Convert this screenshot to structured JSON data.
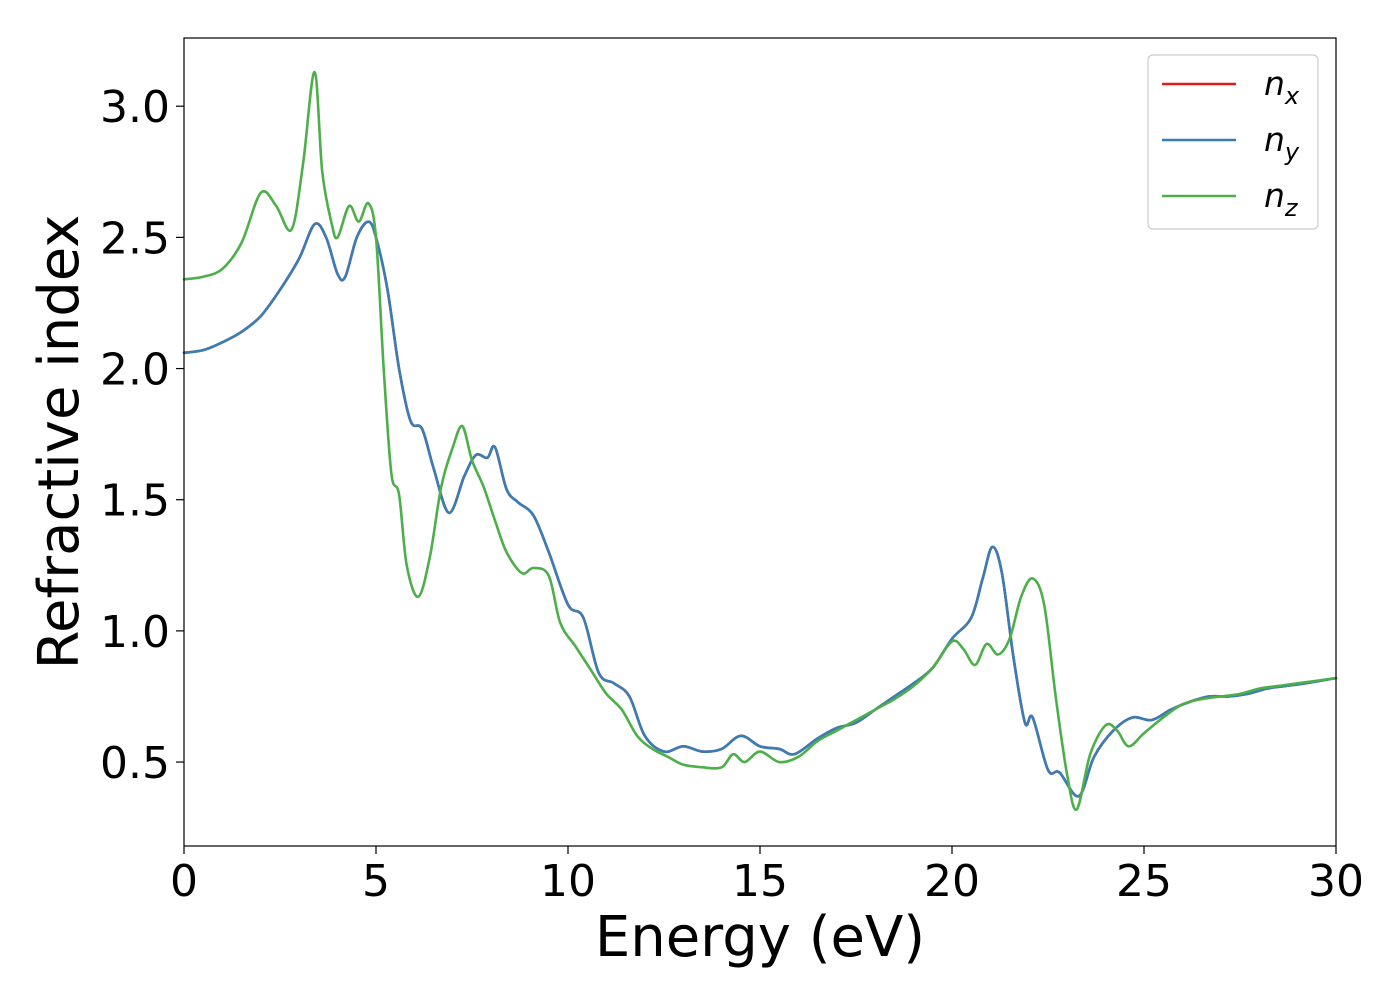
{
  "chart_data": {
    "type": "line",
    "xlabel": "Energy (eV)",
    "ylabel": "Refractive index",
    "xlim": [
      0,
      30
    ],
    "ylim": [
      0.18,
      3.26
    ],
    "xticks": [
      0,
      5,
      10,
      15,
      20,
      25,
      30
    ],
    "xtick_labels": [
      "0",
      "5",
      "10",
      "15",
      "20",
      "25",
      "30"
    ],
    "yticks": [
      0.5,
      1.0,
      1.5,
      2.0,
      2.5,
      3.0
    ],
    "ytick_labels": [
      "0.5",
      "1.0",
      "1.5",
      "2.0",
      "2.5",
      "3.0"
    ],
    "grid": false,
    "legend_position": "top-right",
    "series": [
      {
        "name": "n",
        "subscript": "x",
        "color": "#e41a1c",
        "x": [
          0,
          0.5,
          1.0,
          1.5,
          2.0,
          2.5,
          3.0,
          3.4,
          3.7,
          4.0,
          4.2,
          4.5,
          4.8,
          5.0,
          5.3,
          5.6,
          5.9,
          6.2,
          6.5,
          6.9,
          7.3,
          7.6,
          7.9,
          8.1,
          8.4,
          8.7,
          9.1,
          9.5,
          10.0,
          10.4,
          10.8,
          11.2,
          11.6,
          12.0,
          12.5,
          13.0,
          13.5,
          14.0,
          14.5,
          15.0,
          15.5,
          15.9,
          16.5,
          17.0,
          17.5,
          18.0,
          18.5,
          19.0,
          19.5,
          20.0,
          20.5,
          20.8,
          21.05,
          21.3,
          21.6,
          21.9,
          22.1,
          22.5,
          22.8,
          23.3,
          23.7,
          24.2,
          24.7,
          25.2,
          25.7,
          26.2,
          26.7,
          27.2,
          27.7,
          28.2,
          28.7,
          29.2,
          29.6,
          30.0
        ],
        "y": [
          2.06,
          2.07,
          2.1,
          2.14,
          2.2,
          2.3,
          2.42,
          2.55,
          2.5,
          2.36,
          2.35,
          2.5,
          2.56,
          2.5,
          2.3,
          2.0,
          1.8,
          1.77,
          1.62,
          1.45,
          1.59,
          1.67,
          1.66,
          1.7,
          1.54,
          1.49,
          1.44,
          1.3,
          1.1,
          1.05,
          0.84,
          0.8,
          0.75,
          0.6,
          0.54,
          0.56,
          0.54,
          0.55,
          0.6,
          0.56,
          0.55,
          0.53,
          0.59,
          0.63,
          0.65,
          0.7,
          0.75,
          0.8,
          0.86,
          0.97,
          1.05,
          1.2,
          1.32,
          1.22,
          0.9,
          0.65,
          0.67,
          0.47,
          0.46,
          0.37,
          0.52,
          0.62,
          0.67,
          0.66,
          0.7,
          0.73,
          0.75,
          0.75,
          0.76,
          0.78,
          0.79,
          0.8,
          0.81,
          0.82
        ]
      },
      {
        "name": "n",
        "subscript": "y",
        "color": "#377eb8",
        "x": [
          0,
          0.5,
          1.0,
          1.5,
          2.0,
          2.5,
          3.0,
          3.4,
          3.7,
          4.0,
          4.2,
          4.5,
          4.8,
          5.0,
          5.3,
          5.6,
          5.9,
          6.2,
          6.5,
          6.9,
          7.3,
          7.6,
          7.9,
          8.1,
          8.4,
          8.7,
          9.1,
          9.5,
          10.0,
          10.4,
          10.8,
          11.2,
          11.6,
          12.0,
          12.5,
          13.0,
          13.5,
          14.0,
          14.5,
          15.0,
          15.5,
          15.9,
          16.5,
          17.0,
          17.5,
          18.0,
          18.5,
          19.0,
          19.5,
          20.0,
          20.5,
          20.8,
          21.05,
          21.3,
          21.6,
          21.9,
          22.1,
          22.5,
          22.8,
          23.3,
          23.7,
          24.2,
          24.7,
          25.2,
          25.7,
          26.2,
          26.7,
          27.2,
          27.7,
          28.2,
          28.7,
          29.2,
          29.6,
          30.0
        ],
        "y": [
          2.06,
          2.07,
          2.1,
          2.14,
          2.2,
          2.3,
          2.42,
          2.55,
          2.5,
          2.36,
          2.35,
          2.5,
          2.56,
          2.5,
          2.3,
          2.0,
          1.8,
          1.77,
          1.62,
          1.45,
          1.59,
          1.67,
          1.66,
          1.7,
          1.54,
          1.49,
          1.44,
          1.3,
          1.1,
          1.05,
          0.84,
          0.8,
          0.75,
          0.6,
          0.54,
          0.56,
          0.54,
          0.55,
          0.6,
          0.56,
          0.55,
          0.53,
          0.59,
          0.63,
          0.65,
          0.7,
          0.75,
          0.8,
          0.86,
          0.97,
          1.05,
          1.2,
          1.32,
          1.22,
          0.9,
          0.65,
          0.67,
          0.47,
          0.46,
          0.37,
          0.52,
          0.62,
          0.67,
          0.66,
          0.7,
          0.73,
          0.75,
          0.75,
          0.76,
          0.78,
          0.79,
          0.8,
          0.81,
          0.82
        ]
      },
      {
        "name": "n",
        "subscript": "z",
        "color": "#4daf4a",
        "x": [
          0,
          0.5,
          1.0,
          1.5,
          2.0,
          2.4,
          2.8,
          3.1,
          3.4,
          3.6,
          3.85,
          4.0,
          4.3,
          4.55,
          4.8,
          5.0,
          5.2,
          5.4,
          5.6,
          5.8,
          6.1,
          6.4,
          6.7,
          7.0,
          7.25,
          7.5,
          7.8,
          8.1,
          8.4,
          8.8,
          9.1,
          9.5,
          9.8,
          10.2,
          10.6,
          11.0,
          11.4,
          11.8,
          12.2,
          12.6,
          13.0,
          13.5,
          14.0,
          14.3,
          14.6,
          15.0,
          15.5,
          16.0,
          16.5,
          17.0,
          17.5,
          18.0,
          18.5,
          19.0,
          19.5,
          20.0,
          20.3,
          20.6,
          20.9,
          21.2,
          21.5,
          21.8,
          22.1,
          22.4,
          22.7,
          23.0,
          23.25,
          23.6,
          24.0,
          24.3,
          24.6,
          25.0,
          25.5,
          26.0,
          26.5,
          27.0,
          27.5,
          28.0,
          28.5,
          29.0,
          29.5,
          30.0
        ],
        "y": [
          2.34,
          2.35,
          2.38,
          2.48,
          2.67,
          2.62,
          2.53,
          2.78,
          3.13,
          2.75,
          2.55,
          2.5,
          2.62,
          2.56,
          2.63,
          2.5,
          2.0,
          1.6,
          1.52,
          1.25,
          1.13,
          1.28,
          1.55,
          1.7,
          1.78,
          1.65,
          1.55,
          1.42,
          1.3,
          1.22,
          1.24,
          1.21,
          1.03,
          0.94,
          0.85,
          0.76,
          0.7,
          0.6,
          0.55,
          0.52,
          0.49,
          0.48,
          0.48,
          0.53,
          0.5,
          0.54,
          0.5,
          0.52,
          0.58,
          0.62,
          0.66,
          0.7,
          0.74,
          0.79,
          0.86,
          0.96,
          0.93,
          0.87,
          0.95,
          0.91,
          0.97,
          1.13,
          1.2,
          1.1,
          0.75,
          0.45,
          0.32,
          0.53,
          0.64,
          0.62,
          0.56,
          0.61,
          0.67,
          0.72,
          0.74,
          0.75,
          0.76,
          0.78,
          0.79,
          0.8,
          0.81,
          0.82
        ]
      }
    ]
  }
}
